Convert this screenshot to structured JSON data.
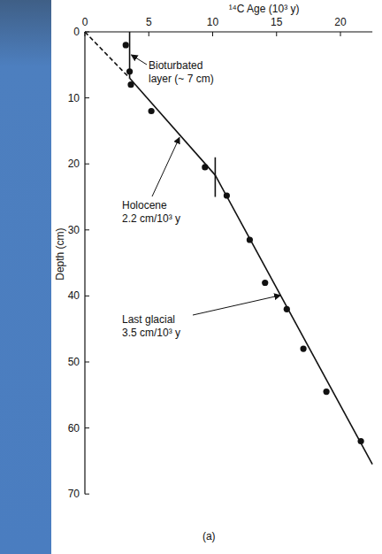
{
  "chart_data": {
    "type": "scatter",
    "x_label": "¹⁴C Age (10³ y)",
    "y_label": "Depth (cm)",
    "xlim": [
      0,
      22.5
    ],
    "ylim": [
      0,
      70
    ],
    "xticks": [
      0,
      5,
      10,
      15,
      20
    ],
    "yticks": [
      0,
      10,
      20,
      30,
      40,
      50,
      60,
      70
    ],
    "color": "#111111",
    "series": [
      {
        "type": "scatter",
        "marker": "circle",
        "x": [
          3.2,
          3.5,
          3.6,
          5.2,
          9.4,
          11.1,
          12.9,
          14.1,
          15.8,
          17.1,
          18.9,
          21.6
        ],
        "values": [
          2,
          6,
          8,
          12,
          20.5,
          24.8,
          31.5,
          38,
          42,
          48,
          54.5,
          62
        ]
      },
      {
        "type": "line",
        "line_style": "dashed",
        "x": [
          0,
          3.5
        ],
        "values": [
          0,
          7
        ]
      },
      {
        "type": "line",
        "line_style": "solid",
        "x": [
          3.5,
          10.2
        ],
        "values": [
          7,
          21.7
        ]
      },
      {
        "type": "line",
        "line_style": "solid",
        "x": [
          10.2,
          22.5
        ],
        "values": [
          21.7,
          65.5
        ]
      },
      {
        "type": "line",
        "line_style": "solid",
        "x": [
          3.5,
          3.5
        ],
        "values": [
          0,
          7
        ]
      },
      {
        "type": "line",
        "line_style": "solid",
        "x": [
          10.2,
          10.2
        ],
        "values": [
          19,
          25
        ]
      }
    ],
    "annotations": [
      {
        "lines": [
          "Bioturbated",
          "layer (~ 7 cm)"
        ]
      },
      {
        "lines": [
          "Holocene",
          "2.2 cm/10³ y"
        ]
      },
      {
        "lines": [
          "Last glacial",
          "3.5 cm/10³ y"
        ]
      },
      {
        "lines": [
          "(a)"
        ]
      }
    ],
    "grid": false
  }
}
